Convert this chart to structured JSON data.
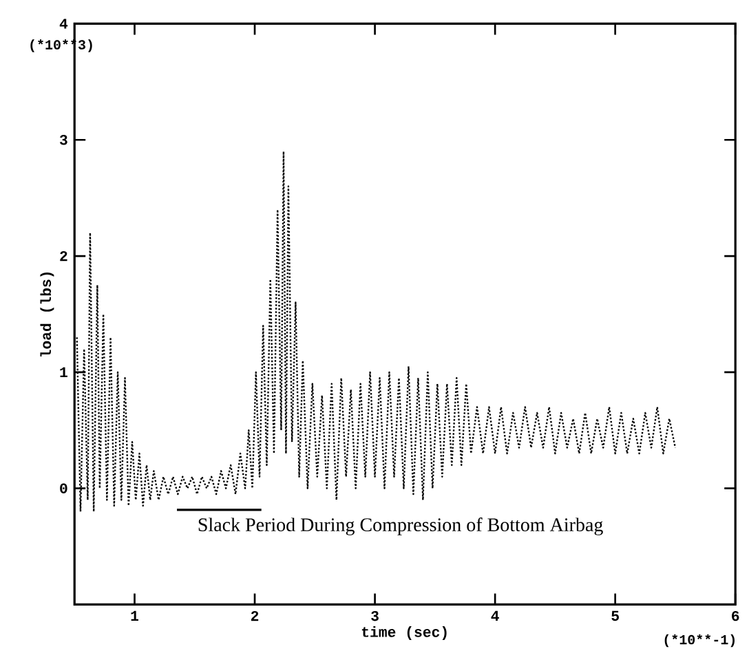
{
  "chart_data": {
    "type": "line",
    "xlabel": "time (sec)",
    "ylabel": "load (lbs)",
    "xlim": [
      0.5,
      6
    ],
    "xticks": [
      1,
      2,
      3,
      4,
      5,
      6
    ],
    "ylim": [
      -1,
      4
    ],
    "yticks": [
      0,
      1,
      2,
      3,
      4
    ],
    "grid": false,
    "marker": "none",
    "line_style": "dotted",
    "annotations": [
      "(*10**3)",
      "(*10**-1)",
      "Slack Period During Compression of Bottom Airbag"
    ],
    "series": [
      {
        "color": "#000000",
        "x": [
          0.52,
          0.55,
          0.58,
          0.61,
          0.63,
          0.66,
          0.69,
          0.71,
          0.74,
          0.77,
          0.8,
          0.83,
          0.86,
          0.89,
          0.92,
          0.95,
          0.98,
          1.01,
          1.04,
          1.07,
          1.1,
          1.13,
          1.16,
          1.2,
          1.24,
          1.28,
          1.32,
          1.36,
          1.4,
          1.44,
          1.48,
          1.52,
          1.56,
          1.6,
          1.64,
          1.68,
          1.72,
          1.76,
          1.8,
          1.84,
          1.88,
          1.92,
          1.95,
          1.98,
          2.01,
          2.04,
          2.07,
          2.1,
          2.13,
          2.16,
          2.19,
          2.22,
          2.24,
          2.26,
          2.28,
          2.31,
          2.34,
          2.37,
          2.4,
          2.44,
          2.48,
          2.52,
          2.56,
          2.6,
          2.64,
          2.68,
          2.72,
          2.76,
          2.8,
          2.84,
          2.88,
          2.92,
          2.96,
          3.0,
          3.04,
          3.08,
          3.12,
          3.16,
          3.2,
          3.24,
          3.28,
          3.32,
          3.36,
          3.4,
          3.44,
          3.48,
          3.52,
          3.56,
          3.6,
          3.64,
          3.68,
          3.72,
          3.76,
          3.8,
          3.85,
          3.9,
          3.95,
          4.0,
          4.05,
          4.1,
          4.15,
          4.2,
          4.25,
          4.3,
          4.35,
          4.4,
          4.45,
          4.5,
          4.55,
          4.6,
          4.65,
          4.7,
          4.75,
          4.8,
          4.85,
          4.9,
          4.95,
          5.0,
          5.05,
          5.1,
          5.15,
          5.2,
          5.25,
          5.3,
          5.35,
          5.4,
          5.45,
          5.5
        ],
        "values": [
          1.3,
          -0.2,
          1.2,
          -0.1,
          2.2,
          -0.2,
          1.75,
          0.0,
          1.5,
          -0.1,
          1.3,
          -0.15,
          1.0,
          -0.1,
          0.95,
          -0.15,
          0.4,
          -0.1,
          0.3,
          -0.15,
          0.2,
          -0.1,
          0.15,
          -0.1,
          0.1,
          -0.05,
          0.1,
          -0.05,
          0.1,
          0.0,
          0.1,
          -0.05,
          0.1,
          0.0,
          0.1,
          -0.05,
          0.15,
          0.0,
          0.2,
          -0.05,
          0.3,
          0.0,
          0.5,
          0.0,
          1.0,
          0.1,
          1.4,
          0.2,
          1.8,
          0.3,
          2.4,
          0.5,
          2.9,
          0.3,
          2.6,
          0.4,
          1.6,
          0.1,
          1.1,
          0.0,
          0.9,
          0.1,
          0.8,
          0.0,
          0.9,
          -0.1,
          0.95,
          0.1,
          0.85,
          0.0,
          0.9,
          0.1,
          1.0,
          0.1,
          0.95,
          0.0,
          1.0,
          0.1,
          0.95,
          0.0,
          1.05,
          -0.05,
          0.95,
          -0.1,
          1.0,
          0.0,
          0.9,
          0.1,
          0.9,
          0.2,
          0.95,
          0.2,
          0.9,
          0.3,
          0.7,
          0.3,
          0.7,
          0.3,
          0.7,
          0.3,
          0.65,
          0.35,
          0.7,
          0.35,
          0.65,
          0.35,
          0.7,
          0.3,
          0.65,
          0.35,
          0.6,
          0.3,
          0.65,
          0.3,
          0.6,
          0.35,
          0.7,
          0.3,
          0.65,
          0.3,
          0.6,
          0.3,
          0.65,
          0.35,
          0.7,
          0.3,
          0.6,
          0.35
        ]
      }
    ]
  }
}
